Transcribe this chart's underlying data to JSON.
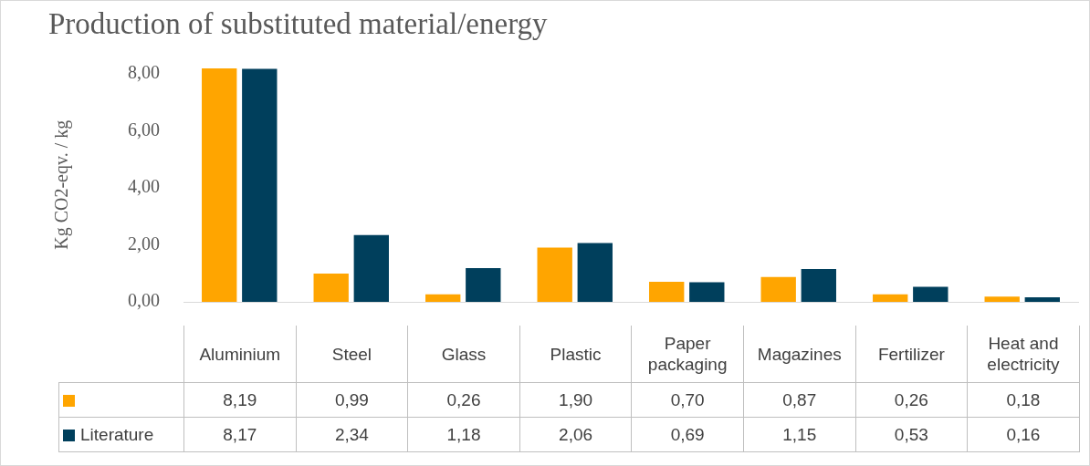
{
  "chart_data": {
    "type": "bar",
    "title": "Production of substituted material/energy",
    "ylabel": "Kg CO2-eqv. / kg",
    "categories": [
      "Aluminium",
      "Steel",
      "Glass",
      "Plastic",
      "Paper packaging",
      "Magazines",
      "Fertilizer",
      "Heat and electricity"
    ],
    "series": [
      {
        "color": "#ffa500",
        "values": [
          8.19,
          0.99,
          0.26,
          1.9,
          0.7,
          0.87,
          0.26,
          0.18
        ],
        "value_labels": [
          "8,19",
          "0,99",
          "0,26",
          "1,90",
          "0,70",
          "0,87",
          "0,26",
          "0,18"
        ]
      },
      {
        "name": "Literature",
        "color": "#003f5c",
        "values": [
          8.17,
          2.34,
          1.18,
          2.06,
          0.69,
          1.15,
          0.53,
          0.16
        ],
        "value_labels": [
          "8,17",
          "2,34",
          "1,18",
          "2,06",
          "0,69",
          "1,15",
          "0,53",
          "0,16"
        ]
      }
    ],
    "ylim": [
      0,
      8.2
    ],
    "yticks": [
      {
        "value": 0,
        "label": "0,00"
      },
      {
        "value": 2,
        "label": "2,00"
      },
      {
        "value": 4,
        "label": "4,00"
      },
      {
        "value": 6,
        "label": "6,00"
      },
      {
        "value": 8,
        "label": "8,00"
      }
    ],
    "grid": false,
    "legend": "bottom"
  }
}
